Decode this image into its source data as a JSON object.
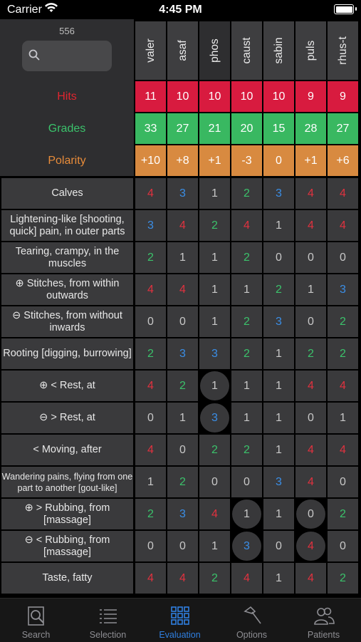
{
  "status_bar": {
    "carrier": "Carrier",
    "time": "4:45 PM"
  },
  "header": {
    "count": "556",
    "search_placeholder": ""
  },
  "labels": {
    "hits": "Hits",
    "grades": "Grades",
    "polarity": "Polarity"
  },
  "remedies": [
    "valer",
    "asaf",
    "phos",
    "caust",
    "sabin",
    "puls",
    "rhus-t"
  ],
  "hits": [
    "11",
    "10",
    "10",
    "10",
    "10",
    "9",
    "9"
  ],
  "grades": [
    "33",
    "27",
    "21",
    "20",
    "15",
    "28",
    "27"
  ],
  "polarity": [
    "+10",
    "+8",
    "+1",
    "-3",
    "0",
    "+1",
    "+6"
  ],
  "rows": [
    {
      "label": "Calves",
      "values": [
        "4",
        "3",
        "1",
        "2",
        "3",
        "4",
        "4"
      ]
    },
    {
      "label": "Lightening-like [shooting, quick] pain, in outer parts",
      "values": [
        "3",
        "4",
        "2",
        "4",
        "1",
        "4",
        "4"
      ]
    },
    {
      "label": "Tearing, crampy, in the muscles",
      "values": [
        "2",
        "1",
        "1",
        "2",
        "0",
        "0",
        "0"
      ]
    },
    {
      "label": "⊕ Stitches, from within outwards",
      "values": [
        "4",
        "4",
        "1",
        "1",
        "2",
        "1",
        "3"
      ]
    },
    {
      "label": "⊖ Stitches, from without inwards",
      "values": [
        "0",
        "0",
        "1",
        "2",
        "3",
        "0",
        "2"
      ]
    },
    {
      "label": "Rooting [digging, burrowing]",
      "values": [
        "2",
        "3",
        "3",
        "2",
        "1",
        "2",
        "2"
      ]
    },
    {
      "label": "⊕ < Rest, at",
      "values": [
        "4",
        "2",
        "1",
        "1",
        "1",
        "4",
        "4"
      ]
    },
    {
      "label": "⊖ > Rest, at",
      "values": [
        "0",
        "1",
        "3",
        "1",
        "1",
        "0",
        "1"
      ]
    },
    {
      "label": "< Moving, after",
      "values": [
        "4",
        "0",
        "2",
        "2",
        "1",
        "4",
        "4"
      ]
    },
    {
      "label": "Wandering pains, flying from one part to another [gout-like]",
      "values": [
        "1",
        "2",
        "0",
        "0",
        "3",
        "4",
        "0"
      ]
    },
    {
      "label": "⊕ > Rubbing, from [massage]",
      "values": [
        "2",
        "3",
        "4",
        "1",
        "1",
        "0",
        "2"
      ]
    },
    {
      "label": "⊖ < Rubbing, from [massage]",
      "values": [
        "0",
        "0",
        "1",
        "3",
        "0",
        "4",
        "0"
      ]
    },
    {
      "label": "Taste, fatty",
      "values": [
        "4",
        "4",
        "2",
        "4",
        "1",
        "4",
        "2"
      ]
    }
  ],
  "tabs": [
    {
      "label": "Search",
      "icon": "search-icon"
    },
    {
      "label": "Selection",
      "icon": "list-icon"
    },
    {
      "label": "Evaluation",
      "icon": "grid-icon",
      "active": true
    },
    {
      "label": "Options",
      "icon": "hammer-icon"
    },
    {
      "label": "Patients",
      "icon": "people-icon"
    }
  ],
  "colors": {
    "hits": "#d81b3f",
    "grades": "#39b861",
    "polarity": "#d88a40",
    "accent": "#2f7fe0"
  }
}
